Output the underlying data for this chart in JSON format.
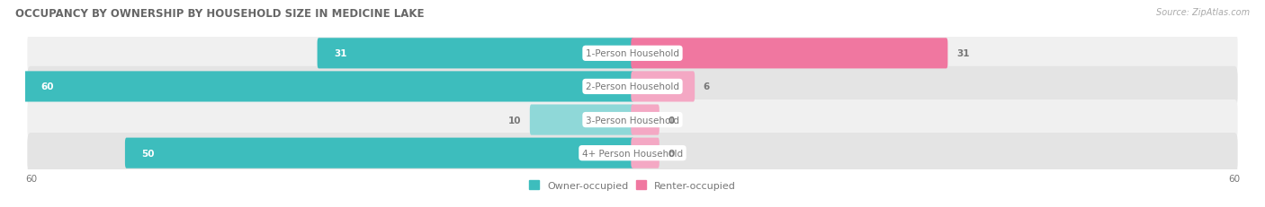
{
  "title": "OCCUPANCY BY OWNERSHIP BY HOUSEHOLD SIZE IN MEDICINE LAKE",
  "source": "Source: ZipAtlas.com",
  "categories": [
    "1-Person Household",
    "2-Person Household",
    "3-Person Household",
    "4+ Person Household"
  ],
  "owner_values": [
    31,
    60,
    10,
    50
  ],
  "renter_values": [
    31,
    6,
    0,
    0
  ],
  "owner_color": "#3dbdbd",
  "renter_color": "#f077a0",
  "owner_color_light": "#8fd8d8",
  "renter_color_light": "#f4a8c4",
  "row_bg_colors": [
    "#f0f0f0",
    "#e4e4e4",
    "#f0f0f0",
    "#e4e4e4"
  ],
  "x_max": 60,
  "stub_size": 2.5,
  "label_color": "#777777",
  "title_color": "#666666",
  "source_color": "#aaaaaa",
  "center_label_bg": "#ffffff",
  "center_label_color": "#777777",
  "value_label_color_dark": "#ffffff",
  "value_label_color_light": "#777777"
}
